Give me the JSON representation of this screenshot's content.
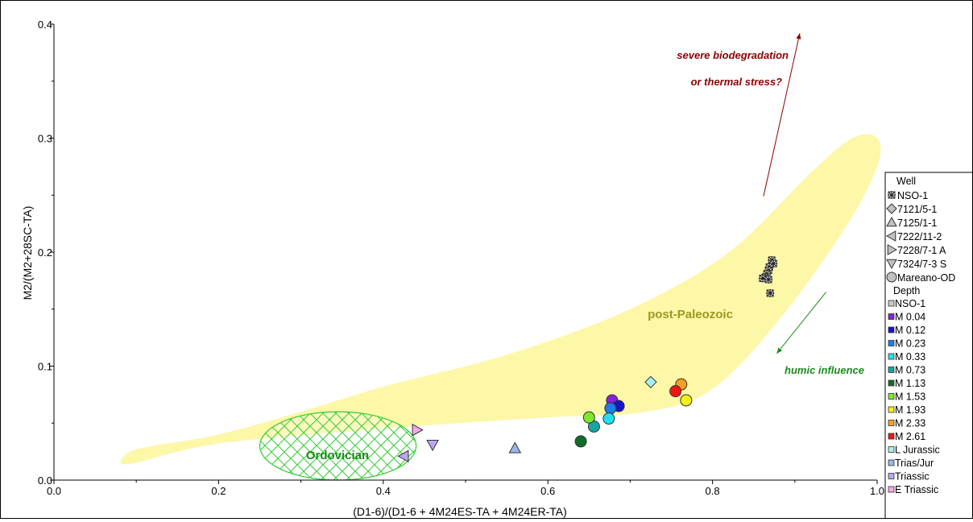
{
  "chart_data": {
    "type": "scatter",
    "xlabel": "(D1-6)/(D1-6 + 4M24ES-TA + 4M24ER-TA)",
    "ylabel": "M2/(M2+28SC-TA)",
    "xlim": [
      0.0,
      1.0
    ],
    "ylim": [
      0.0,
      0.4
    ],
    "x_ticks": [
      "0.0",
      "0.2",
      "0.4",
      "0.6",
      "0.8",
      "1.0"
    ],
    "y_ticks": [
      "0.0",
      "0.1",
      "0.2",
      "0.3",
      "0.4"
    ],
    "x_tick_values": [
      0.0,
      0.2,
      0.4,
      0.6,
      0.8,
      1.0
    ],
    "y_tick_values": [
      0.0,
      0.1,
      0.2,
      0.3,
      0.4
    ],
    "grid": false,
    "annotations": {
      "biodegradation_line1": "severe biodegradation",
      "biodegradation_line2": "or thermal stress?",
      "humic": "humic influence",
      "post_paleozoic": "post-Paleozoic",
      "ordovician": "Ordovician"
    },
    "annotation_colors": {
      "biodegradation": "#8b0000",
      "humic": "#1a8a1a",
      "post_paleozoic": "#9a9a20",
      "ordovician": "#1a8a1a",
      "envelope_fill": "#fdf7a8",
      "ordovician_hatch": "#33cc33"
    },
    "regions": {
      "post_paleozoic_envelope": [
        [
          0.09,
          0.014
        ],
        [
          0.2,
          0.032
        ],
        [
          0.4,
          0.045
        ],
        [
          0.6,
          0.055
        ],
        [
          0.72,
          0.06
        ],
        [
          0.8,
          0.08
        ],
        [
          0.88,
          0.14
        ],
        [
          0.96,
          0.22
        ],
        [
          1.0,
          0.275
        ],
        [
          1.0,
          0.3
        ],
        [
          0.97,
          0.3
        ],
        [
          0.92,
          0.27
        ],
        [
          0.82,
          0.2
        ],
        [
          0.7,
          0.15
        ],
        [
          0.55,
          0.11
        ],
        [
          0.4,
          0.082
        ],
        [
          0.3,
          0.06
        ],
        [
          0.2,
          0.04
        ],
        [
          0.12,
          0.03
        ],
        [
          0.09,
          0.024
        ]
      ],
      "ordovician_ellipse": {
        "cx": 0.345,
        "cy": 0.03,
        "rx": 0.095,
        "ry": 0.03
      }
    },
    "arrows": [
      {
        "name": "biodegradation-arrow",
        "from": [
          0.862,
          0.249
        ],
        "to": [
          0.906,
          0.392
        ]
      },
      {
        "name": "humic-arrow",
        "from": [
          0.938,
          0.165
        ],
        "to": [
          0.878,
          0.111
        ]
      }
    ],
    "legend": {
      "position": "right",
      "well_title": "Well",
      "wells": [
        {
          "label": "NSO-1",
          "marker": "star"
        },
        {
          "label": "7121/5-1",
          "marker": "diamond"
        },
        {
          "label": "7125/1-1",
          "marker": "triangle-up"
        },
        {
          "label": "7222/11-2",
          "marker": "triangle-left"
        },
        {
          "label": "7228/7-1 A",
          "marker": "triangle-right"
        },
        {
          "label": "7324/7-3 S",
          "marker": "triangle-down"
        },
        {
          "label": "Mareano-OD",
          "marker": "circle"
        }
      ],
      "depth_title": "Depth",
      "depths": [
        {
          "label": "NSO-1",
          "color": "#c8c8c8"
        },
        {
          "label": "M 0.04",
          "color": "#8822dd"
        },
        {
          "label": "M 0.12",
          "color": "#1515cc"
        },
        {
          "label": "M 0.23",
          "color": "#1e7de6"
        },
        {
          "label": "M 0.33",
          "color": "#22e0f0"
        },
        {
          "label": "M 0.73",
          "color": "#16a5a5"
        },
        {
          "label": "M 1.13",
          "color": "#106d28"
        },
        {
          "label": "M 1.53",
          "color": "#7ee82a"
        },
        {
          "label": "M 1.93",
          "color": "#f5f018"
        },
        {
          "label": "M 2.33",
          "color": "#f5a020"
        },
        {
          "label": "M 2.61",
          "color": "#f01515"
        },
        {
          "label": "L Jurassic",
          "color": "#a8eef0"
        },
        {
          "label": "Trias/Jur",
          "color": "#9ab6f0"
        },
        {
          "label": "Triassic",
          "color": "#b9a8ee"
        },
        {
          "label": "E Triassic",
          "color": "#f5a8e8"
        }
      ]
    },
    "points": [
      {
        "well": "NSO-1",
        "depth": "NSO-1",
        "x": 0.872,
        "y": 0.193
      },
      {
        "well": "NSO-1",
        "depth": "NSO-1",
        "x": 0.874,
        "y": 0.19
      },
      {
        "well": "NSO-1",
        "depth": "NSO-1",
        "x": 0.869,
        "y": 0.187
      },
      {
        "well": "NSO-1",
        "depth": "NSO-1",
        "x": 0.868,
        "y": 0.184
      },
      {
        "well": "NSO-1",
        "depth": "NSO-1",
        "x": 0.866,
        "y": 0.181
      },
      {
        "well": "NSO-1",
        "depth": "NSO-1",
        "x": 0.864,
        "y": 0.178
      },
      {
        "well": "NSO-1",
        "depth": "NSO-1",
        "x": 0.861,
        "y": 0.177
      },
      {
        "well": "NSO-1",
        "depth": "NSO-1",
        "x": 0.868,
        "y": 0.176
      },
      {
        "well": "NSO-1",
        "depth": "NSO-1",
        "x": 0.87,
        "y": 0.164
      },
      {
        "well": "7121/5-1",
        "depth": "L Jurassic",
        "x": 0.725,
        "y": 0.086
      },
      {
        "well": "7125/1-1",
        "depth": "Trias/Jur",
        "x": 0.56,
        "y": 0.028
      },
      {
        "well": "7222/11-2",
        "depth": "Triassic",
        "x": 0.425,
        "y": 0.021
      },
      {
        "well": "7228/7-1 A",
        "depth": "E Triassic",
        "x": 0.441,
        "y": 0.044
      },
      {
        "well": "7324/7-3 S",
        "depth": "Triassic",
        "x": 0.46,
        "y": 0.031
      },
      {
        "well": "Mareano-OD",
        "depth": "M 0.04",
        "x": 0.678,
        "y": 0.07
      },
      {
        "well": "Mareano-OD",
        "depth": "M 0.12",
        "x": 0.686,
        "y": 0.065
      },
      {
        "well": "Mareano-OD",
        "depth": "M 0.23",
        "x": 0.676,
        "y": 0.063
      },
      {
        "well": "Mareano-OD",
        "depth": "M 0.33",
        "x": 0.674,
        "y": 0.054
      },
      {
        "well": "Mareano-OD",
        "depth": "M 0.73",
        "x": 0.656,
        "y": 0.047
      },
      {
        "well": "Mareano-OD",
        "depth": "M 1.13",
        "x": 0.64,
        "y": 0.034
      },
      {
        "well": "Mareano-OD",
        "depth": "M 1.53",
        "x": 0.65,
        "y": 0.055
      },
      {
        "well": "Mareano-OD",
        "depth": "M 1.93",
        "x": 0.768,
        "y": 0.07
      },
      {
        "well": "Mareano-OD",
        "depth": "M 2.33",
        "x": 0.762,
        "y": 0.084
      },
      {
        "well": "Mareano-OD",
        "depth": "M 2.61",
        "x": 0.755,
        "y": 0.078
      }
    ]
  }
}
